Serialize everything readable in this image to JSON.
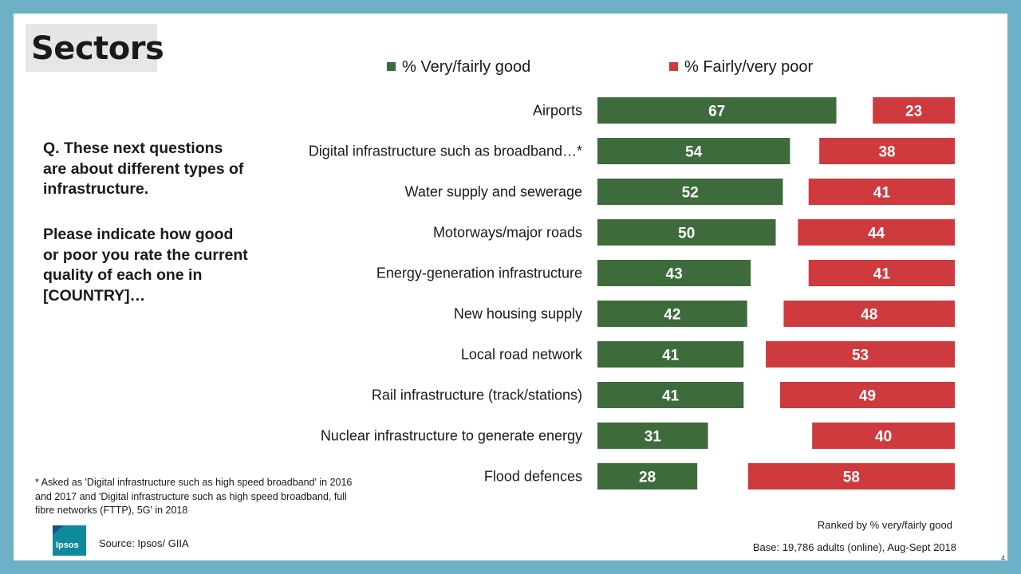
{
  "header": {
    "title": "Sectors"
  },
  "question": {
    "line1": "Q. These next questions are about different types of infrastructure.",
    "line2": "Please indicate how good or poor you rate the current quality of each one in [COUNTRY]…"
  },
  "legend": {
    "good_label": "% Very/fairly good",
    "poor_label": "% Fairly/very poor"
  },
  "colors": {
    "good": "#3d6b3b",
    "poor": "#cf3a3e",
    "frame": "#6fb0c9",
    "logo": "#0f8a9c"
  },
  "footer": {
    "footnote": "* Asked as 'Digital infrastructure such as high speed broadband' in 2016 and 2017 and 'Digital infrastructure such as high speed broadband, full fibre networks (FTTP), 5G' in 2018",
    "source": "Source: Ipsos/ GIIA",
    "ranked": "Ranked by % very/fairly good",
    "base": "Base: 19,786 adults (online), Aug-Sept 2018",
    "page": "4",
    "logo_text": "Ipsos"
  },
  "chart_data": {
    "type": "bar",
    "orientation": "horizontal",
    "title": "Sectors",
    "categories": [
      "Airports",
      "Digital infrastructure such as broadband…*",
      "Water supply and sewerage",
      "Motorways/major roads",
      "Energy-generation infrastructure",
      "New housing supply",
      "Local road network",
      "Rail infrastructure (track/stations)",
      "Nuclear infrastructure to generate energy",
      "Flood defences"
    ],
    "series": [
      {
        "name": "% Very/fairly good",
        "values": [
          67,
          54,
          52,
          50,
          43,
          42,
          41,
          41,
          31,
          28
        ]
      },
      {
        "name": "% Fairly/very poor",
        "values": [
          23,
          38,
          41,
          44,
          41,
          48,
          53,
          49,
          40,
          58
        ]
      }
    ],
    "layout_note": "good bars left-aligned, poor bars right-aligned",
    "xlim": [
      0,
      100
    ],
    "legend_position": "top",
    "grid": false
  }
}
